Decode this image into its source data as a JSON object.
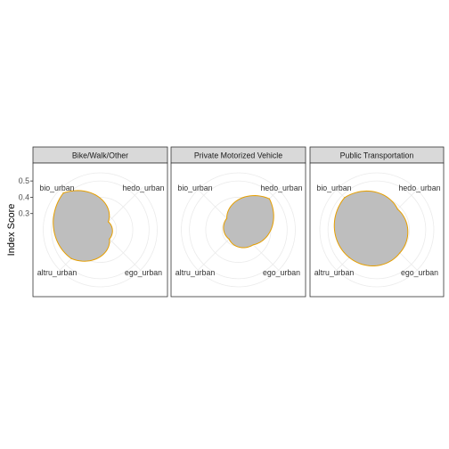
{
  "chart_data": {
    "type": "radar",
    "ylabel": "Index Score",
    "y_ticks": [
      "0.3",
      "0.4",
      "0.5"
    ],
    "y_tick_values": [
      0.3,
      0.4,
      0.5
    ],
    "r_range": [
      0.2,
      0.55
    ],
    "axes": [
      "bio_urban",
      "hedo_urban",
      "ego_urban",
      "altru_urban"
    ],
    "fill_color": "#bebebe",
    "line_color": "#e69f00",
    "grid_color": "#ebebeb",
    "panels": [
      {
        "title": "Bike/Walk/Other",
        "values": [
          0.52,
          0.27,
          0.28,
          0.45
        ]
      },
      {
        "title": "Private Motorized Vehicle",
        "values": [
          0.3,
          0.47,
          0.33,
          0.28
        ]
      },
      {
        "title": "Public Transportation",
        "values": [
          0.48,
          0.38,
          0.4,
          0.44
        ]
      }
    ]
  }
}
